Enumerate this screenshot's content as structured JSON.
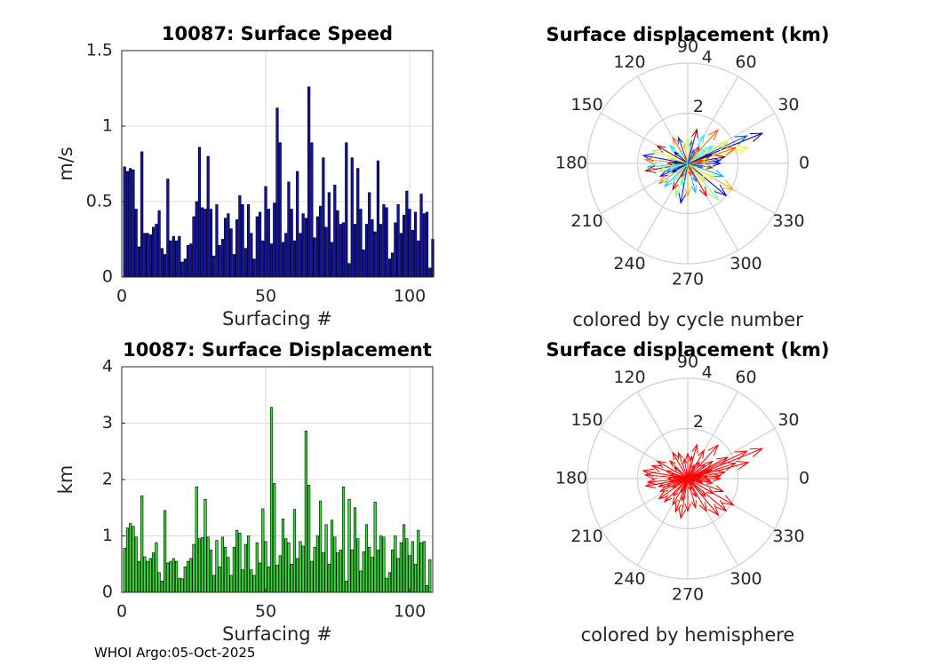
{
  "footer": "WHOI Argo:05-Oct-2025",
  "chart_data": [
    {
      "type": "bar",
      "title": "10087: Surface Speed",
      "xlabel": "Surfacing #",
      "ylabel": "m/s",
      "xlim": [
        0,
        108
      ],
      "ylim": [
        0,
        1.5
      ],
      "xticks": [
        0,
        50,
        100
      ],
      "xtick_labels": [
        "0",
        "50",
        "100"
      ],
      "yticks": [
        0,
        0.5,
        1,
        1.5
      ],
      "ytick_labels": [
        "0",
        "0.5",
        "1",
        "1.5"
      ],
      "bar_color": "#1010b0",
      "categories": [
        1,
        2,
        3,
        4,
        5,
        6,
        7,
        8,
        9,
        10,
        11,
        12,
        13,
        14,
        15,
        16,
        17,
        18,
        19,
        20,
        21,
        22,
        23,
        24,
        25,
        26,
        27,
        28,
        29,
        30,
        31,
        32,
        33,
        34,
        35,
        36,
        37,
        38,
        39,
        40,
        41,
        42,
        43,
        44,
        45,
        46,
        47,
        48,
        49,
        50,
        51,
        52,
        53,
        54,
        55,
        56,
        57,
        58,
        59,
        60,
        61,
        62,
        63,
        64,
        65,
        66,
        67,
        68,
        69,
        70,
        71,
        72,
        73,
        74,
        75,
        76,
        77,
        78,
        79,
        80,
        81,
        82,
        83,
        84,
        85,
        86,
        87,
        88,
        89,
        90,
        91,
        92,
        93,
        94,
        95,
        96,
        97,
        98,
        99,
        100,
        101,
        102,
        103,
        104,
        105,
        106,
        107
      ],
      "values": [
        0.73,
        0.7,
        0.72,
        0.71,
        0.45,
        0.2,
        0.83,
        0.29,
        0.29,
        0.28,
        0.33,
        0.35,
        0.44,
        0.19,
        0.15,
        0.65,
        0.24,
        0.27,
        0.24,
        0.27,
        0.1,
        0.12,
        0.21,
        0.22,
        0.4,
        0.5,
        0.86,
        0.46,
        0.45,
        0.8,
        0.45,
        0.14,
        0.48,
        0.21,
        0.25,
        0.39,
        0.42,
        0.32,
        0.15,
        0.38,
        0.54,
        0.48,
        0.19,
        0.48,
        0.29,
        0.12,
        0.4,
        0.43,
        0.24,
        0.6,
        0.45,
        0.22,
        0.49,
        1.12,
        0.89,
        0.23,
        0.29,
        0.63,
        0.45,
        0.24,
        0.7,
        0.29,
        0.42,
        0.39,
        1.26,
        0.89,
        0.26,
        0.4,
        0.47,
        0.79,
        0.33,
        0.56,
        0.23,
        0.61,
        0.44,
        0.35,
        0.36,
        0.89,
        0.09,
        0.79,
        0.35,
        0.72,
        0.45,
        0.18,
        0.35,
        0.56,
        0.38,
        0.3,
        0.77,
        0.35,
        0.48,
        0.46,
        0.12,
        0.16,
        0.36,
        0.48,
        0.29,
        0.41,
        0.57,
        0.45,
        0.31,
        0.43,
        0.24,
        0.55,
        0.42,
        0.43,
        0.06
      ],
      "last_bar": {
        "category": 108,
        "value": 0.25
      }
    },
    {
      "type": "bar",
      "title": "10087: Surface Displacement",
      "xlabel": "Surfacing #",
      "ylabel": "km",
      "xlim": [
        0,
        108
      ],
      "ylim": [
        0,
        4
      ],
      "xticks": [
        0,
        50,
        100
      ],
      "xtick_labels": [
        "0",
        "50",
        "100"
      ],
      "yticks": [
        0,
        1,
        2,
        3,
        4
      ],
      "ytick_labels": [
        "0",
        "1",
        "2",
        "3",
        "4"
      ],
      "bar_color": "#33dd33",
      "categories": [
        1,
        2,
        3,
        4,
        5,
        6,
        7,
        8,
        9,
        10,
        11,
        12,
        13,
        14,
        15,
        16,
        17,
        18,
        19,
        20,
        21,
        22,
        23,
        24,
        25,
        26,
        27,
        28,
        29,
        30,
        31,
        32,
        33,
        34,
        35,
        36,
        37,
        38,
        39,
        40,
        41,
        42,
        43,
        44,
        45,
        46,
        47,
        48,
        49,
        50,
        51,
        52,
        53,
        54,
        55,
        56,
        57,
        58,
        59,
        60,
        61,
        62,
        63,
        64,
        65,
        66,
        67,
        68,
        69,
        70,
        71,
        72,
        73,
        74,
        75,
        76,
        77,
        78,
        79,
        80,
        81,
        82,
        83,
        84,
        85,
        86,
        87,
        88,
        89,
        90,
        91,
        92,
        93,
        94,
        95,
        96,
        97,
        98,
        99,
        100,
        101,
        102,
        103,
        104,
        105,
        106,
        107,
        108
      ],
      "values": [
        0.78,
        1.14,
        1.22,
        1.17,
        0.98,
        0.55,
        1.71,
        0.63,
        0.55,
        0.6,
        0.7,
        0.88,
        0.35,
        0.2,
        1.45,
        0.52,
        0.55,
        0.6,
        0.55,
        0.25,
        0.24,
        0.45,
        0.55,
        0.6,
        0.85,
        1.87,
        0.95,
        0.97,
        1.65,
        0.98,
        0.75,
        0.3,
        0.92,
        0.45,
        0.98,
        0.8,
        0.62,
        0.3,
        0.8,
        1.1,
        1.05,
        0.4,
        0.85,
        1.0,
        0.4,
        0.3,
        0.88,
        0.52,
        1.48,
        0.9,
        0.45,
        3.28,
        1.93,
        0.48,
        0.65,
        1.3,
        0.95,
        0.88,
        0.5,
        1.47,
        0.6,
        0.9,
        0.82,
        2.86,
        1.9,
        0.55,
        0.8,
        1.0,
        1.62,
        0.7,
        1.2,
        0.5,
        1.28,
        0.98,
        0.7,
        0.75,
        1.87,
        0.2,
        1.65,
        0.75,
        1.5,
        0.95,
        0.38,
        0.72,
        1.2,
        0.8,
        0.62,
        1.6,
        0.75,
        1.0,
        0.98,
        0.25,
        0.35,
        0.75,
        1.0,
        0.6,
        0.88,
        1.2,
        0.95,
        0.65,
        0.9,
        0.5,
        1.1,
        0.88,
        0.9,
        0.12,
        0.58,
        0.0
      ]
    },
    {
      "type": "polar",
      "title": "Surface displacement (km)",
      "caption": "colored by cycle number",
      "rmax": 4,
      "r_ticks": [
        2,
        4
      ],
      "r_tick_labels": [
        "2",
        "4"
      ],
      "theta_ticks": [
        0,
        30,
        60,
        90,
        120,
        150,
        180,
        210,
        240,
        270,
        300,
        330
      ],
      "theta_tick_labels": [
        "0",
        "30",
        "60",
        "90",
        "120",
        "150",
        "180",
        "210",
        "240",
        "270",
        "300",
        "330"
      ],
      "arrow_coloring": "cycle",
      "arrows": [
        [
          22,
          3.2
        ],
        [
          15,
          2.5
        ],
        [
          25,
          2.6
        ],
        [
          18,
          2.0
        ],
        [
          35,
          1.2
        ],
        [
          10,
          1.5
        ],
        [
          28,
          1.8
        ],
        [
          5,
          1.3
        ],
        [
          48,
          1.8
        ],
        [
          60,
          1.3
        ],
        [
          75,
          1.4
        ],
        [
          90,
          1.0
        ],
        [
          110,
          1.1
        ],
        [
          120,
          1.2
        ],
        [
          135,
          1.0
        ],
        [
          150,
          1.4
        ],
        [
          160,
          1.5
        ],
        [
          170,
          1.8
        ],
        [
          175,
          1.7
        ],
        [
          185,
          1.6
        ],
        [
          190,
          1.7
        ],
        [
          195,
          1.2
        ],
        [
          205,
          1.2
        ],
        [
          215,
          1.4
        ],
        [
          225,
          1.3
        ],
        [
          240,
          1.2
        ],
        [
          250,
          1.4
        ],
        [
          260,
          1.6
        ],
        [
          270,
          1.3
        ],
        [
          285,
          1.2
        ],
        [
          300,
          1.5
        ],
        [
          310,
          1.9
        ],
        [
          320,
          2.0
        ],
        [
          330,
          2.1
        ],
        [
          340,
          1.5
        ],
        [
          350,
          1.0
        ],
        [
          355,
          0.9
        ],
        [
          0,
          1.3
        ],
        [
          5,
          0.8
        ],
        [
          200,
          0.9
        ],
        [
          180,
          0.8
        ],
        [
          165,
          0.7
        ],
        [
          140,
          0.7
        ],
        [
          100,
          0.8
        ],
        [
          80,
          0.9
        ],
        [
          55,
          0.8
        ],
        [
          40,
          0.9
        ],
        [
          20,
          1.0
        ],
        [
          315,
          1.0
        ],
        [
          295,
          0.8
        ],
        [
          245,
          0.6
        ],
        [
          230,
          0.9
        ],
        [
          210,
          0.7
        ],
        [
          330,
          1.2
        ],
        [
          345,
          0.6
        ],
        [
          12,
          0.6
        ],
        [
          190,
          0.7
        ],
        [
          175,
          0.6
        ],
        [
          160,
          0.9
        ],
        [
          65,
          0.6
        ],
        [
          285,
          0.5
        ],
        [
          255,
          0.9
        ]
      ]
    },
    {
      "type": "polar",
      "title": "Surface displacement (km)",
      "caption": "colored by hemisphere",
      "rmax": 4,
      "r_ticks": [
        2,
        4
      ],
      "r_tick_labels": [
        "2",
        "4"
      ],
      "theta_ticks": [
        0,
        30,
        60,
        90,
        120,
        150,
        180,
        210,
        240,
        270,
        300,
        330
      ],
      "theta_tick_labels": [
        "0",
        "30",
        "60",
        "90",
        "120",
        "150",
        "180",
        "210",
        "240",
        "270",
        "300",
        "330"
      ],
      "arrow_color": "#ff0000",
      "arrows": [
        [
          22,
          3.2
        ],
        [
          15,
          2.5
        ],
        [
          25,
          2.6
        ],
        [
          18,
          2.0
        ],
        [
          35,
          1.2
        ],
        [
          10,
          1.5
        ],
        [
          28,
          1.8
        ],
        [
          5,
          1.3
        ],
        [
          48,
          1.8
        ],
        [
          60,
          1.3
        ],
        [
          75,
          1.4
        ],
        [
          90,
          1.0
        ],
        [
          110,
          1.1
        ],
        [
          120,
          1.2
        ],
        [
          135,
          1.0
        ],
        [
          150,
          1.4
        ],
        [
          160,
          1.5
        ],
        [
          170,
          1.8
        ],
        [
          175,
          1.7
        ],
        [
          185,
          1.6
        ],
        [
          190,
          1.7
        ],
        [
          195,
          1.2
        ],
        [
          205,
          1.2
        ],
        [
          215,
          1.4
        ],
        [
          225,
          1.3
        ],
        [
          240,
          1.2
        ],
        [
          250,
          1.4
        ],
        [
          260,
          1.6
        ],
        [
          270,
          1.3
        ],
        [
          285,
          1.2
        ],
        [
          300,
          1.5
        ],
        [
          310,
          1.9
        ],
        [
          320,
          2.0
        ],
        [
          330,
          2.1
        ],
        [
          340,
          1.5
        ],
        [
          350,
          1.0
        ],
        [
          355,
          0.9
        ],
        [
          0,
          1.3
        ],
        [
          5,
          0.8
        ],
        [
          200,
          0.9
        ],
        [
          180,
          0.8
        ],
        [
          165,
          0.7
        ],
        [
          140,
          0.7
        ],
        [
          100,
          0.8
        ],
        [
          80,
          0.9
        ],
        [
          55,
          0.8
        ],
        [
          40,
          0.9
        ],
        [
          20,
          1.0
        ],
        [
          315,
          1.0
        ],
        [
          295,
          0.8
        ],
        [
          245,
          0.6
        ],
        [
          230,
          0.9
        ],
        [
          210,
          0.7
        ],
        [
          330,
          1.2
        ],
        [
          345,
          0.6
        ],
        [
          12,
          0.6
        ],
        [
          190,
          0.7
        ],
        [
          175,
          0.6
        ],
        [
          160,
          0.9
        ],
        [
          65,
          0.6
        ],
        [
          285,
          0.5
        ],
        [
          255,
          0.9
        ]
      ]
    }
  ]
}
